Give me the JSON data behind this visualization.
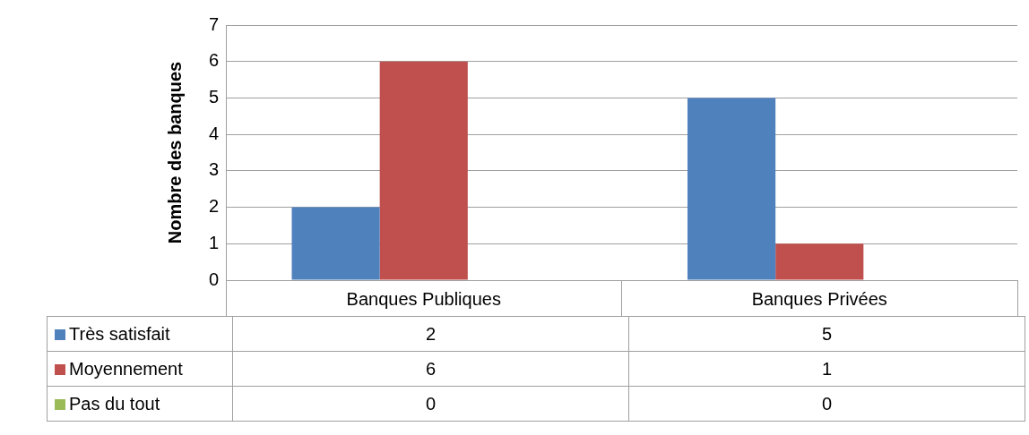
{
  "chart_data": {
    "type": "bar",
    "ylabel": "Nombre des banques",
    "categories": [
      "Banques Publiques",
      "Banques Privées"
    ],
    "series": [
      {
        "name": "Très satisfait",
        "color": "#4f81bd",
        "values": [
          2,
          5
        ]
      },
      {
        "name": "Moyennement",
        "color": "#c0504d",
        "values": [
          6,
          1
        ]
      },
      {
        "name": "Pas du tout",
        "color": "#9bbb59",
        "values": [
          0,
          0
        ]
      }
    ],
    "ylim": [
      0,
      7
    ],
    "yticks": [
      0,
      1,
      2,
      3,
      4,
      5,
      6,
      7
    ],
    "grid": "y",
    "legend": "bottom",
    "data_labels": true
  }
}
